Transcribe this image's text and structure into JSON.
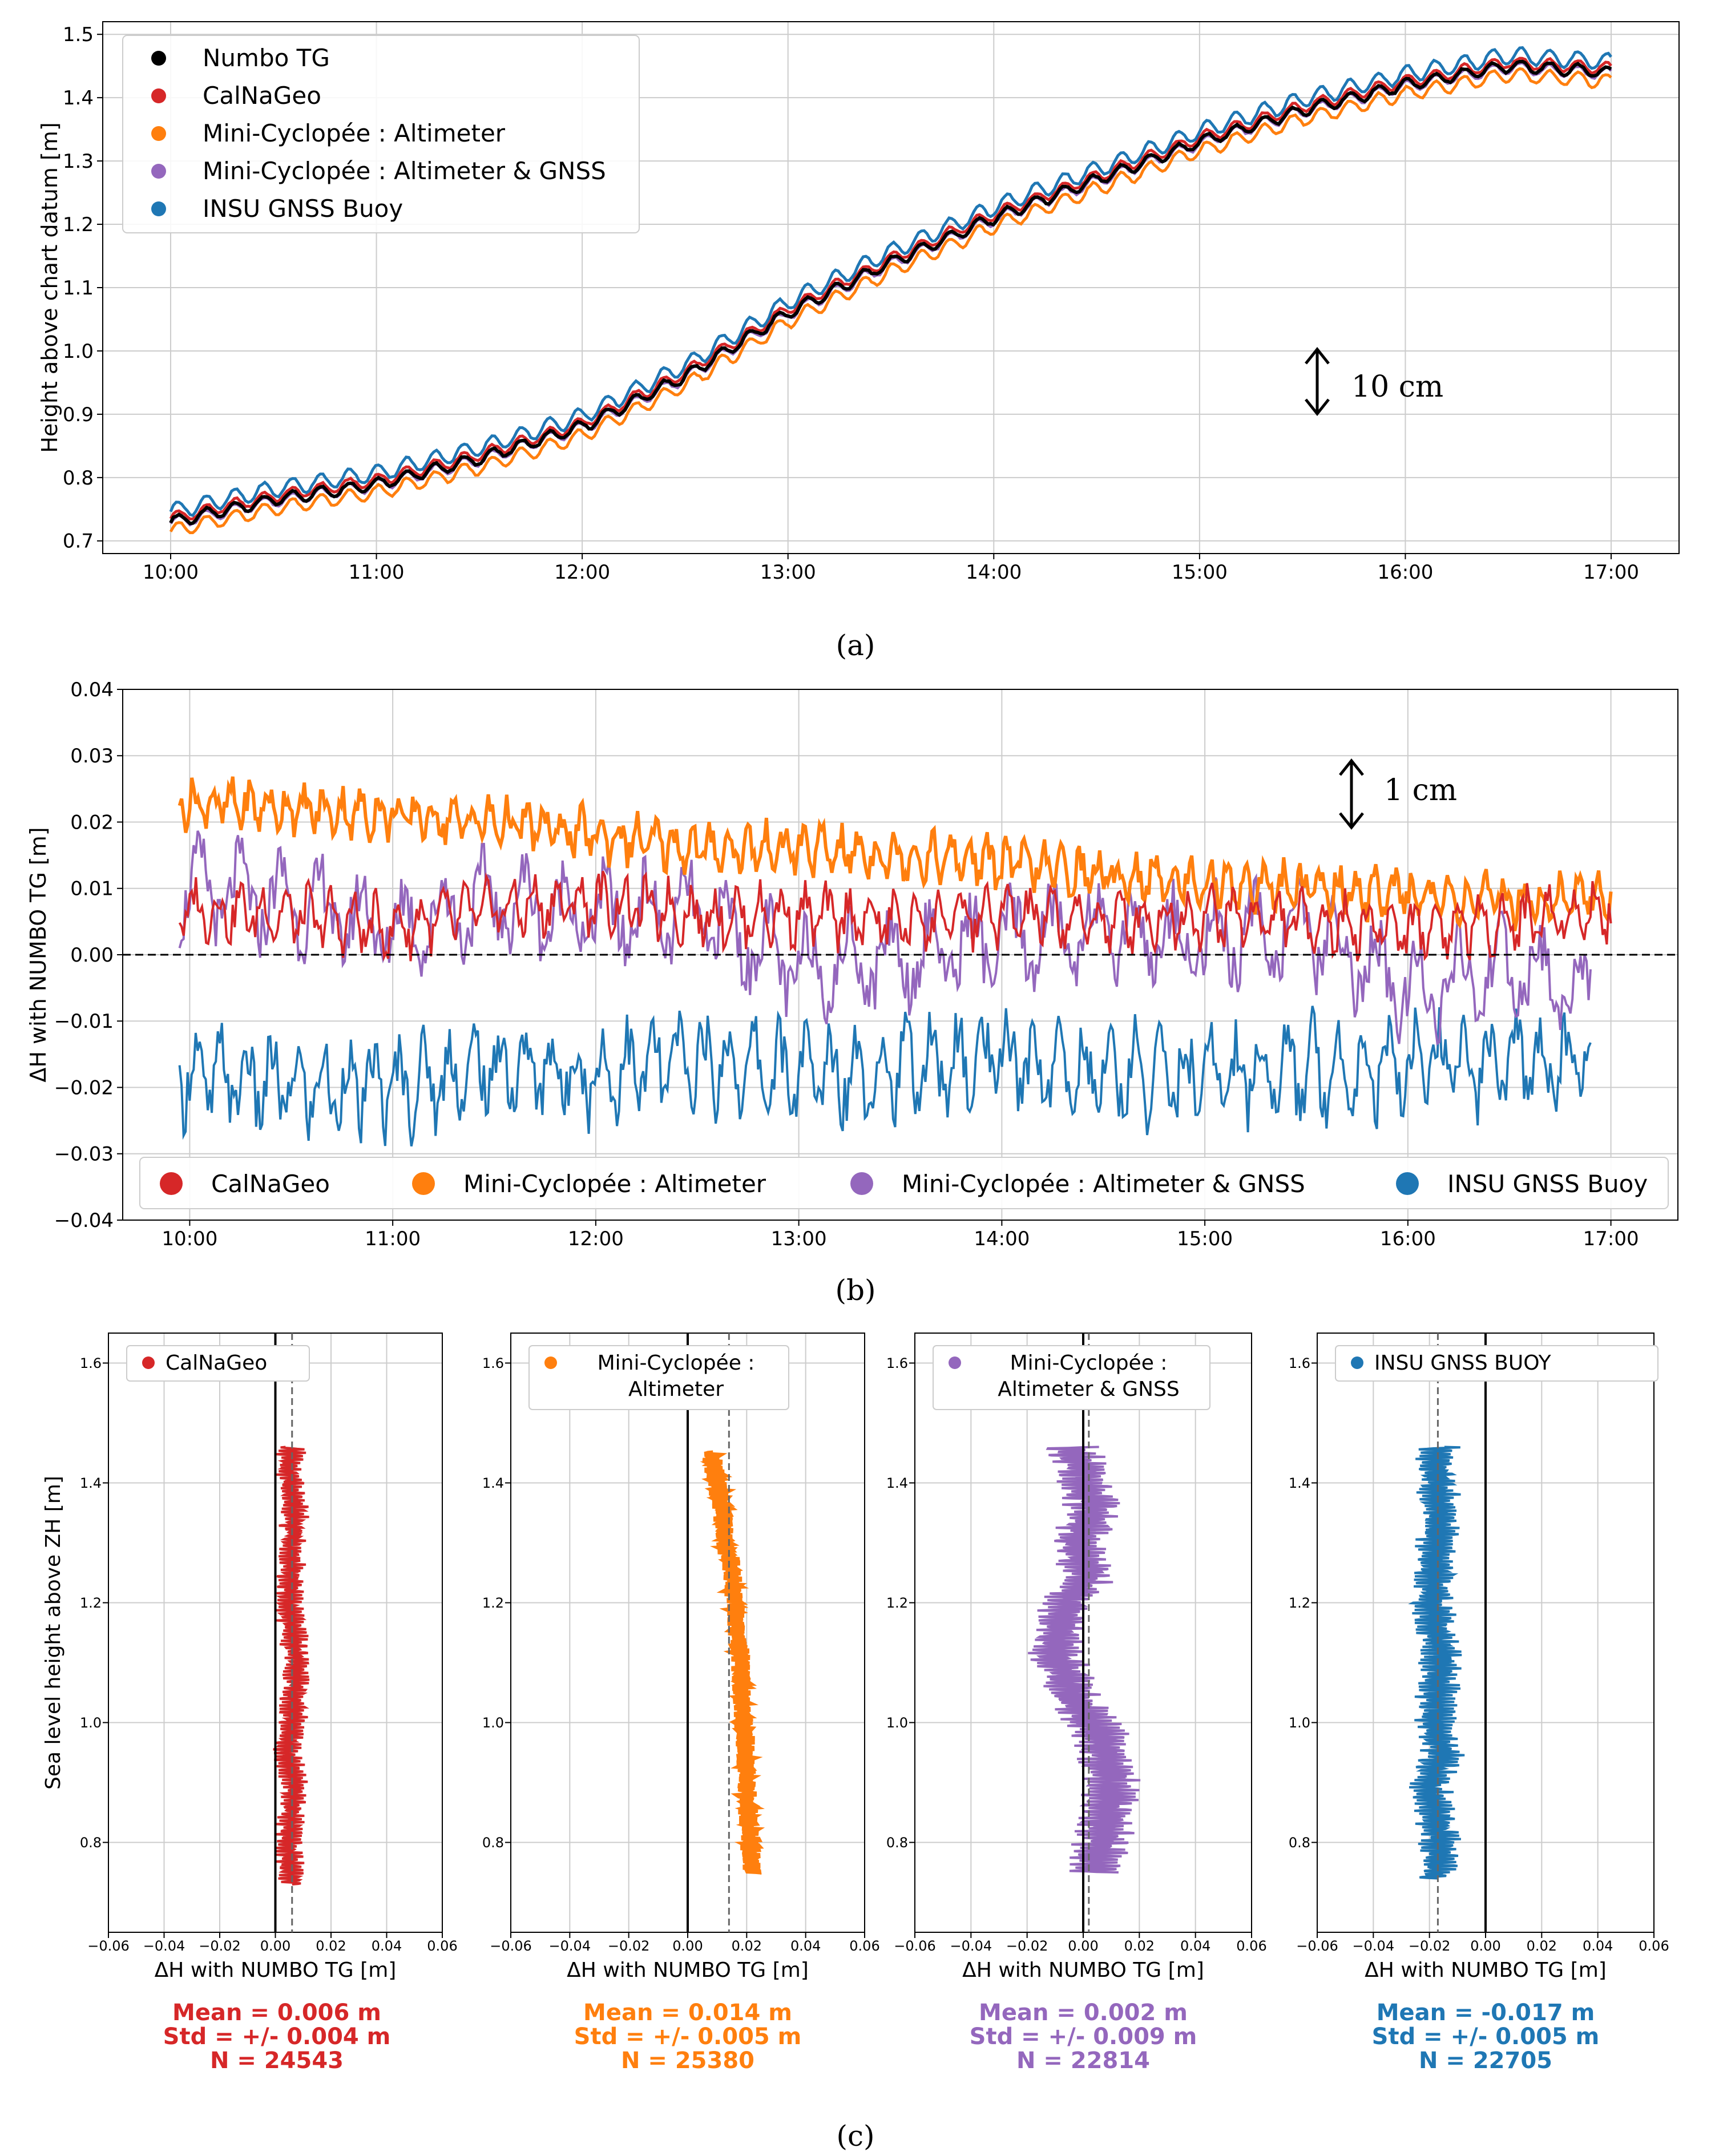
{
  "colors": {
    "numbo": "#000000",
    "calnageo": "#d62728",
    "alt": "#ff7f0e",
    "altgnss": "#9467bd",
    "insu": "#1f77b4",
    "grid": "#cccccc"
  },
  "panel_a": {
    "caption": "(a)",
    "annotation": "10 cm",
    "chart_data": {
      "type": "line",
      "title": "",
      "xlabel": "",
      "ylabel": "Height above chart datum [m]",
      "xlim": [
        9.67,
        17.33
      ],
      "ylim": [
        0.68,
        1.52
      ],
      "x_ticks": [
        10,
        11,
        12,
        13,
        14,
        15,
        16,
        17
      ],
      "x_tick_labels": [
        "10:00",
        "11:00",
        "12:00",
        "13:00",
        "14:00",
        "15:00",
        "16:00",
        "17:00"
      ],
      "y_ticks": [
        0.7,
        0.8,
        0.9,
        1.0,
        1.1,
        1.2,
        1.3,
        1.4,
        1.5
      ],
      "y_tick_labels": [
        "0.7",
        "0.8",
        "0.9",
        "1.0",
        "1.1",
        "1.2",
        "1.3",
        "1.4",
        "1.5"
      ],
      "grid": true,
      "legend_position": "upper-left",
      "base_curve": {
        "x": [
          10.0,
          10.5,
          11.0,
          11.5,
          12.0,
          12.5,
          13.0,
          13.5,
          14.0,
          14.5,
          15.0,
          15.5,
          16.0,
          16.5,
          17.0
        ],
        "y": [
          0.73,
          0.765,
          0.79,
          0.83,
          0.88,
          0.96,
          1.06,
          1.14,
          1.21,
          1.27,
          1.33,
          1.38,
          1.42,
          1.45,
          1.44
        ]
      },
      "series": [
        {
          "name": "Numbo TG",
          "color_key": "numbo",
          "offset": 0.0
        },
        {
          "name": "CalNaGeo",
          "color_key": "calnageo",
          "offset": 0.006
        },
        {
          "name": "Mini-Cyclopée : Altimeter",
          "color_key": "alt",
          "offset": -0.014
        },
        {
          "name": "Mini-Cyclopée : Altimeter & GNSS",
          "color_key": "altgnss",
          "offset": -0.002
        },
        {
          "name": "INSU GNSS Buoy",
          "color_key": "insu",
          "offset": 0.017
        }
      ]
    }
  },
  "panel_b": {
    "caption": "(b)",
    "annotation": "1 cm",
    "chart_data": {
      "type": "scatter",
      "title": "",
      "xlabel": "",
      "ylabel": "ΔH with NUMBO TG [m]",
      "xlim": [
        9.67,
        17.33
      ],
      "ylim": [
        -0.04,
        0.04
      ],
      "x_ticks": [
        10,
        11,
        12,
        13,
        14,
        15,
        16,
        17
      ],
      "x_tick_labels": [
        "10:00",
        "11:00",
        "12:00",
        "13:00",
        "14:00",
        "15:00",
        "16:00",
        "17:00"
      ],
      "y_ticks": [
        -0.04,
        -0.03,
        -0.02,
        -0.01,
        0.0,
        0.01,
        0.02,
        0.03,
        0.04
      ],
      "y_tick_labels": [
        "−0.04",
        "−0.03",
        "−0.02",
        "−0.01",
        "0.00",
        "0.01",
        "0.02",
        "0.03",
        "0.04"
      ],
      "grid": true,
      "zero_line": 0.0,
      "legend_position": "bottom",
      "series": [
        {
          "name": "CalNaGeo",
          "color_key": "calnageo",
          "x": [
            9.95,
            10.5,
            11.0,
            11.5,
            12.0,
            12.5,
            13.0,
            13.5,
            14.0,
            14.5,
            15.0,
            15.5,
            16.0,
            16.5,
            17.0
          ],
          "y": [
            0.007,
            0.006,
            0.004,
            0.007,
            0.008,
            0.006,
            0.006,
            0.005,
            0.006,
            0.005,
            0.006,
            0.005,
            0.004,
            0.005,
            0.007
          ]
        },
        {
          "name": "Mini-Cyclopée : Altimeter",
          "color_key": "alt",
          "x": [
            9.95,
            10.5,
            11.0,
            11.5,
            12.0,
            12.5,
            13.0,
            13.5,
            14.0,
            14.5,
            15.0,
            15.5,
            16.0,
            16.5,
            17.0
          ],
          "y": [
            0.023,
            0.022,
            0.021,
            0.02,
            0.018,
            0.016,
            0.016,
            0.015,
            0.014,
            0.012,
            0.011,
            0.01,
            0.009,
            0.008,
            0.009
          ]
        },
        {
          "name": "Mini-Cyclopée : Altimeter & GNSS",
          "color_key": "altgnss",
          "x": [
            9.95,
            10.5,
            11.0,
            11.5,
            12.0,
            12.5,
            13.0,
            13.5,
            14.0,
            14.5,
            15.0,
            15.5,
            16.0,
            16.5,
            16.9
          ],
          "y": [
            0.01,
            0.008,
            0.004,
            0.008,
            0.006,
            0.006,
            -0.002,
            0.0,
            0.002,
            0.004,
            0.002,
            0.004,
            -0.006,
            -0.002,
            -0.006
          ]
        },
        {
          "name": "INSU GNSS Buoy",
          "color_key": "insu",
          "x": [
            9.95,
            10.5,
            11.0,
            11.5,
            12.0,
            12.5,
            13.0,
            13.5,
            14.0,
            14.5,
            15.0,
            15.5,
            16.0,
            16.5,
            16.9
          ],
          "y": [
            -0.018,
            -0.02,
            -0.02,
            -0.017,
            -0.018,
            -0.016,
            -0.018,
            -0.017,
            -0.016,
            -0.018,
            -0.018,
            -0.017,
            -0.017,
            -0.016,
            -0.016
          ]
        }
      ]
    }
  },
  "panel_c": {
    "caption": "(c)",
    "chart_data": [
      {
        "type": "line",
        "legend": "CalNaGeo",
        "color_key": "calnageo",
        "xlabel": "ΔH with NUMBO TG [m]",
        "ylabel": "Sea level height above ZH [m]",
        "xlim": [
          -0.06,
          0.06
        ],
        "ylim": [
          0.65,
          1.65
        ],
        "x_ticks": [
          -0.06,
          -0.04,
          -0.02,
          0.0,
          0.02,
          0.04,
          0.06
        ],
        "x_tick_labels": [
          "−0.06",
          "−0.04",
          "−0.02",
          "0.00",
          "0.02",
          "0.04",
          "0.06"
        ],
        "y_ticks": [
          0.8,
          1.0,
          1.2,
          1.4,
          1.6
        ],
        "y_tick_labels": [
          "0.8",
          "1.0",
          "1.2",
          "1.4",
          "1.6"
        ],
        "mean_line": 0.006,
        "stats": {
          "mean": "Mean = 0.006 m",
          "std": "Std = +/- 0.004 m",
          "n": "N = 24543"
        },
        "x": [
          0.006,
          0.005,
          0.007,
          0.004,
          0.006,
          0.008,
          0.005,
          0.006,
          0.007,
          0.005,
          0.006
        ],
        "y": [
          0.73,
          0.8,
          0.9,
          0.95,
          1.0,
          1.1,
          1.2,
          1.3,
          1.35,
          1.42,
          1.46
        ]
      },
      {
        "type": "line",
        "legend": "Mini-Cyclopée :\nAltimeter",
        "color_key": "alt",
        "xlabel": "ΔH with NUMBO TG [m]",
        "ylabel": "",
        "xlim": [
          -0.06,
          0.06
        ],
        "ylim": [
          0.65,
          1.65
        ],
        "x_ticks": [
          -0.06,
          -0.04,
          -0.02,
          0.0,
          0.02,
          0.04,
          0.06
        ],
        "x_tick_labels": [
          "−0.06",
          "−0.04",
          "−0.02",
          "0.00",
          "0.02",
          "0.04",
          "0.06"
        ],
        "y_ticks": [
          0.8,
          1.0,
          1.2,
          1.4,
          1.6
        ],
        "y_tick_labels": [
          "0.8",
          "1.0",
          "1.2",
          "1.4",
          "1.6"
        ],
        "mean_line": 0.014,
        "stats": {
          "mean": "Mean = 0.014 m",
          "std": "Std = +/- 0.005 m",
          "n": "N = 25380"
        },
        "x": [
          0.022,
          0.021,
          0.02,
          0.019,
          0.018,
          0.017,
          0.016,
          0.015,
          0.013,
          0.012,
          0.01,
          0.008
        ],
        "y": [
          0.75,
          0.8,
          0.9,
          1.0,
          1.1,
          1.15,
          1.2,
          1.25,
          1.3,
          1.35,
          1.4,
          1.45
        ]
      },
      {
        "type": "line",
        "legend": "Mini-Cyclopée :\nAltimeter & GNSS",
        "color_key": "altgnss",
        "xlabel": "ΔH with NUMBO TG [m]",
        "ylabel": "",
        "xlim": [
          -0.06,
          0.06
        ],
        "ylim": [
          0.65,
          1.65
        ],
        "x_ticks": [
          -0.06,
          -0.04,
          -0.02,
          0.0,
          0.02,
          0.04,
          0.06
        ],
        "x_tick_labels": [
          "−0.06",
          "−0.04",
          "−0.02",
          "0.00",
          "0.02",
          "0.04",
          "0.06"
        ],
        "y_ticks": [
          0.8,
          1.0,
          1.2,
          1.4,
          1.6
        ],
        "y_tick_labels": [
          "0.8",
          "1.0",
          "1.2",
          "1.4",
          "1.6"
        ],
        "mean_line": 0.002,
        "stats": {
          "mean": "Mean = 0.002 m",
          "std": "Std = +/- 0.009 m",
          "n": "N = 22814"
        },
        "x": [
          0.004,
          0.008,
          0.01,
          0.006,
          -0.004,
          -0.01,
          -0.006,
          0.002,
          -0.002,
          0.004,
          0.0,
          -0.004
        ],
        "y": [
          0.75,
          0.82,
          0.9,
          0.98,
          1.05,
          1.12,
          1.2,
          1.25,
          1.3,
          1.35,
          1.42,
          1.46
        ]
      },
      {
        "type": "line",
        "legend": "INSU GNSS BUOY",
        "color_key": "insu",
        "xlabel": "ΔH with NUMBO TG [m]",
        "ylabel": "",
        "xlim": [
          -0.06,
          0.06
        ],
        "ylim": [
          0.65,
          1.65
        ],
        "x_ticks": [
          -0.06,
          -0.04,
          -0.02,
          0.0,
          0.02,
          0.04,
          0.06
        ],
        "x_tick_labels": [
          "−0.06",
          "−0.04",
          "−0.02",
          "0.00",
          "0.02",
          "0.04",
          "0.06"
        ],
        "y_ticks": [
          0.8,
          1.0,
          1.2,
          1.4,
          1.6
        ],
        "y_tick_labels": [
          "0.8",
          "1.0",
          "1.2",
          "1.4",
          "1.6"
        ],
        "mean_line": -0.017,
        "stats": {
          "mean": "Mean = -0.017 m",
          "std": "Std = +/- 0.005 m",
          "n": "N = 22705"
        },
        "x": [
          -0.018,
          -0.016,
          -0.02,
          -0.015,
          -0.018,
          -0.016,
          -0.019,
          -0.017,
          -0.016,
          -0.018,
          -0.017
        ],
        "y": [
          0.74,
          0.8,
          0.9,
          0.95,
          1.0,
          1.1,
          1.2,
          1.3,
          1.35,
          1.42,
          1.46
        ]
      }
    ]
  }
}
